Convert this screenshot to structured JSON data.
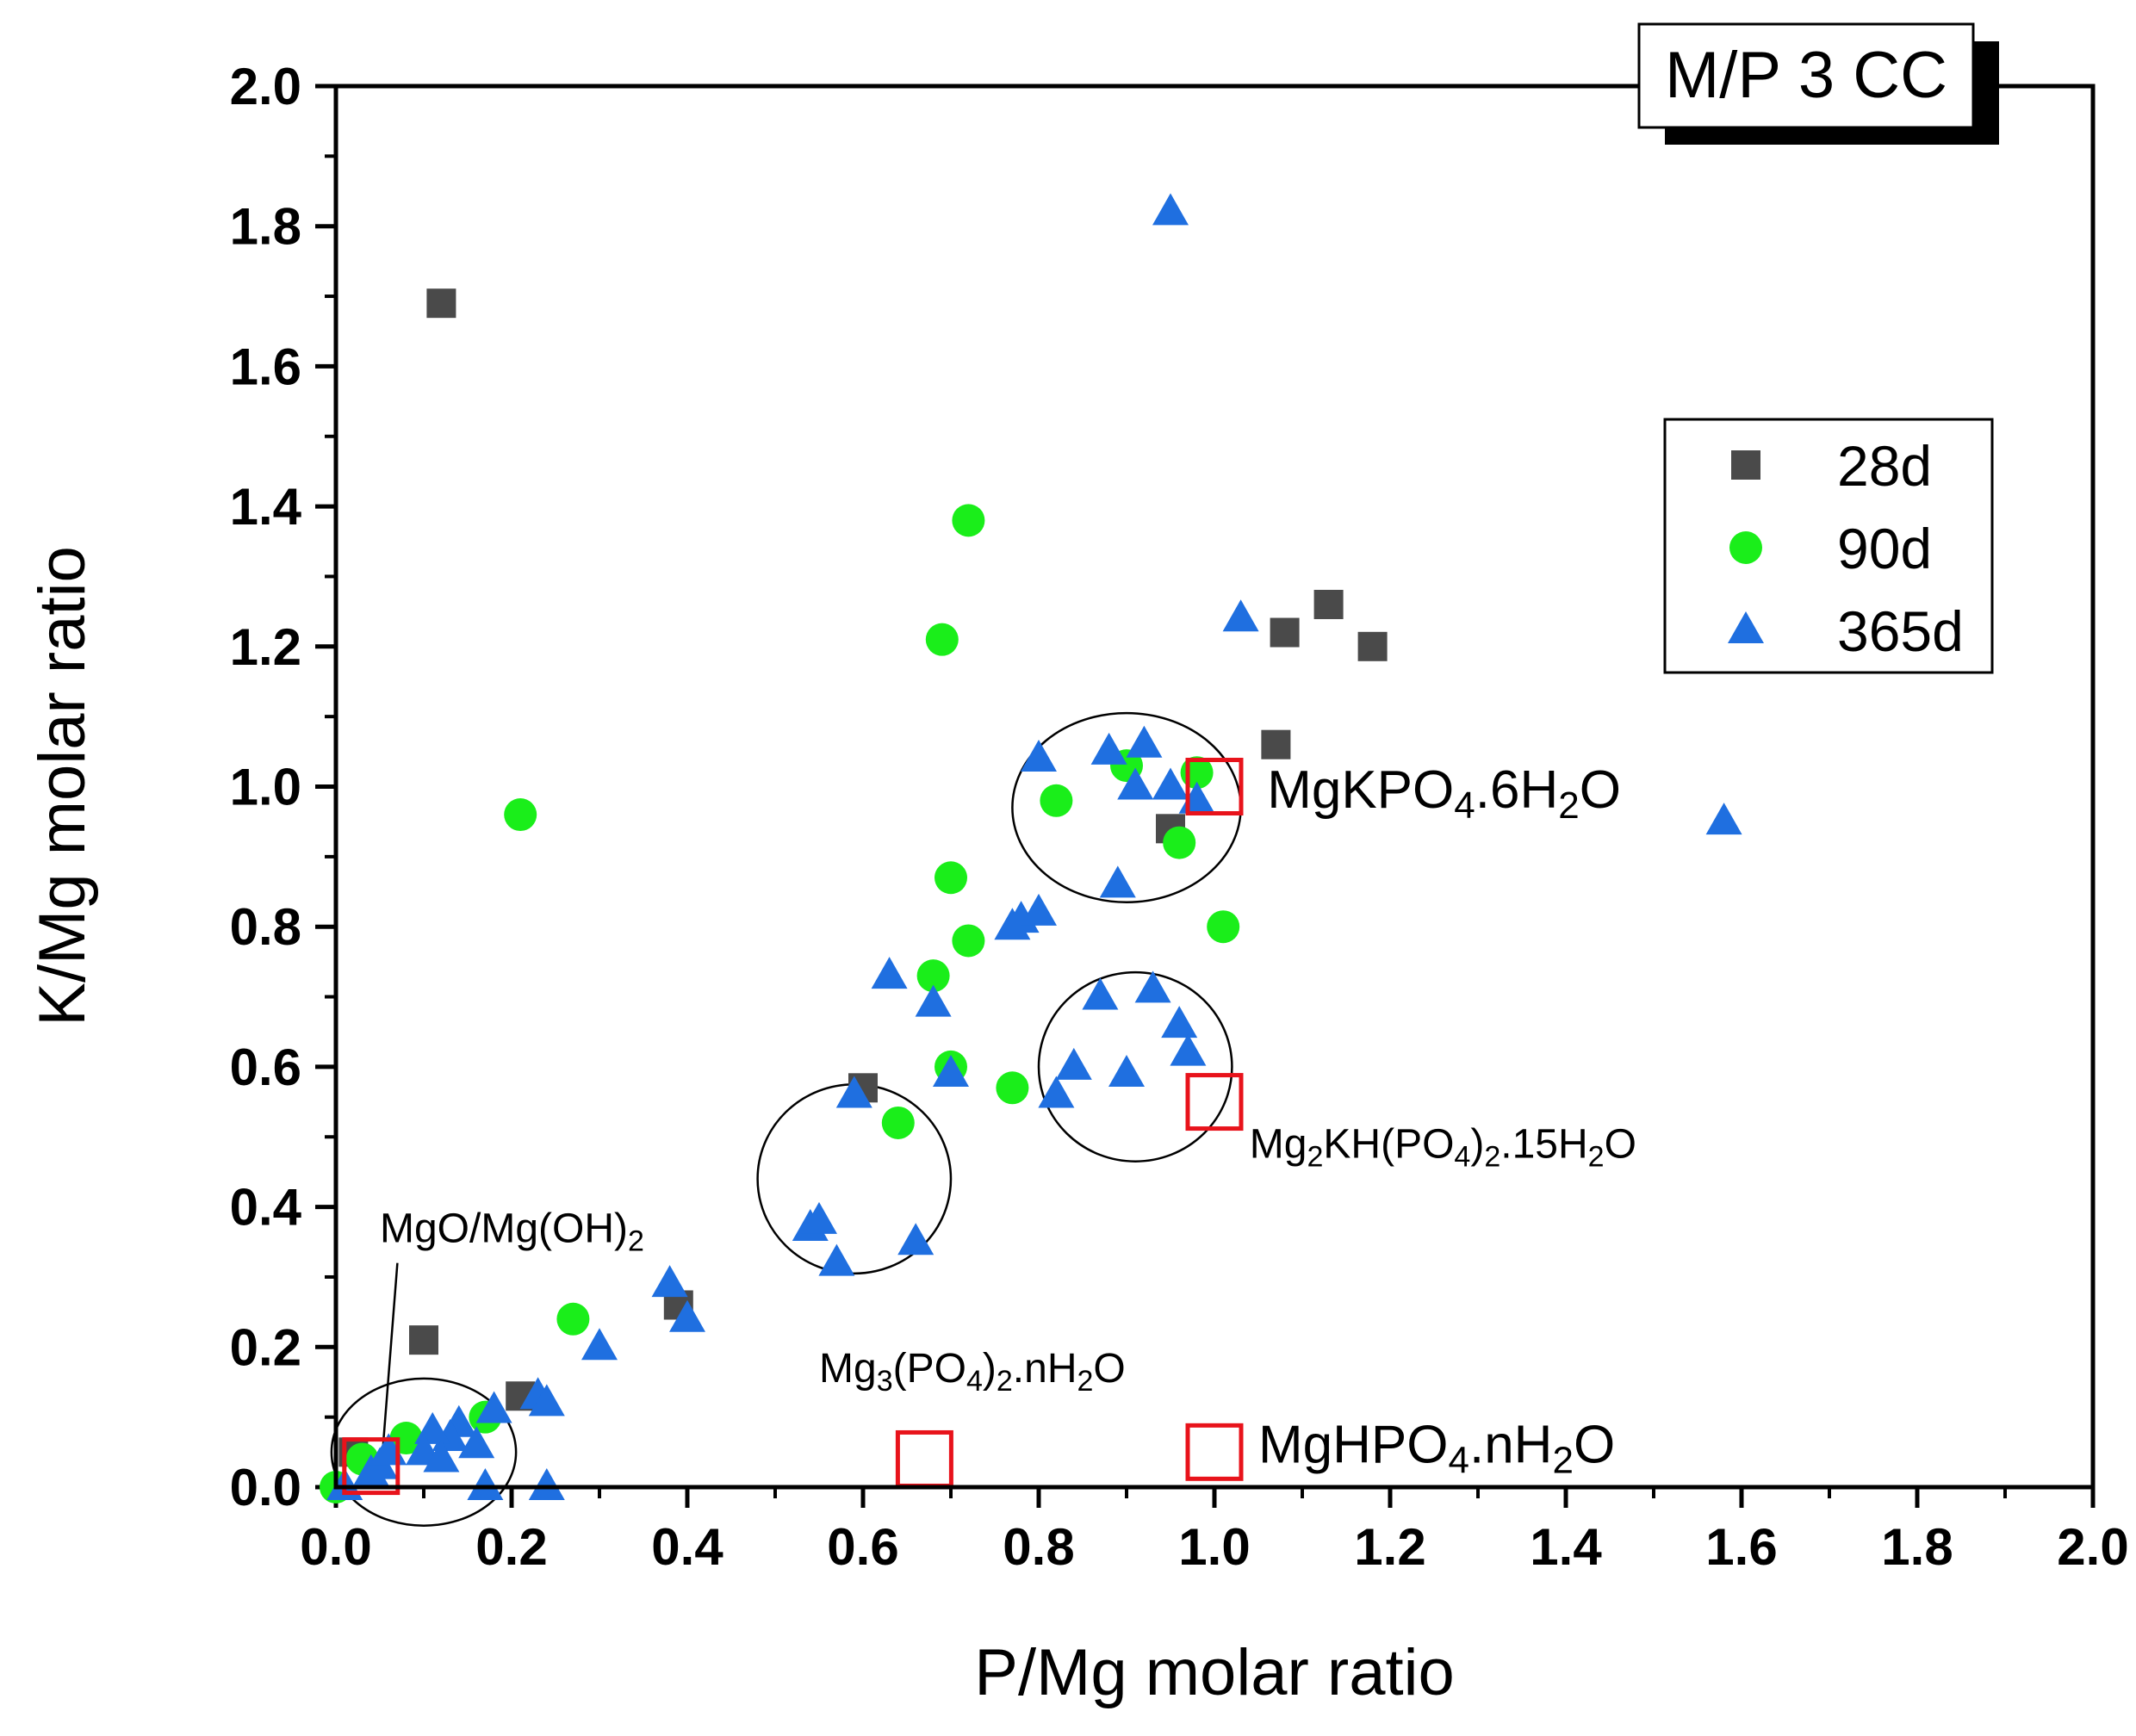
{
  "chart_data": {
    "type": "scatter",
    "title": "M/P 3 CC",
    "xlabel": "P/Mg molar ratio",
    "ylabel": "K/Mg molar ratio",
    "xlim": [
      0,
      2
    ],
    "ylim": [
      0,
      2
    ],
    "xticks": [
      "0.0",
      "0.2",
      "0.4",
      "0.6",
      "0.8",
      "1.0",
      "1.2",
      "1.4",
      "1.6",
      "1.8",
      "2.0"
    ],
    "yticks": [
      "0.0",
      "0.2",
      "0.4",
      "0.6",
      "0.8",
      "1.0",
      "1.2",
      "1.4",
      "1.6",
      "1.8",
      "2.0"
    ],
    "legend_position": "upper-right",
    "series": [
      {
        "name": "28d",
        "marker": "square",
        "color": "#4a4a4a",
        "points": [
          [
            0.12,
            1.69
          ],
          [
            0.1,
            0.21
          ],
          [
            0.21,
            0.13
          ],
          [
            0.02,
            0.05
          ],
          [
            0.39,
            0.26
          ],
          [
            0.6,
            0.57
          ],
          [
            0.95,
            0.94
          ],
          [
            1.08,
            1.22
          ],
          [
            1.13,
            1.26
          ],
          [
            1.18,
            1.2
          ],
          [
            1.07,
            1.06
          ]
        ]
      },
      {
        "name": "90d",
        "marker": "circle",
        "color": "#1aee1a",
        "points": [
          [
            0.21,
            0.96
          ],
          [
            0.72,
            1.38
          ],
          [
            0.69,
            1.21
          ],
          [
            0.7,
            0.87
          ],
          [
            0.72,
            0.78
          ],
          [
            0.68,
            0.73
          ],
          [
            0.7,
            0.6
          ],
          [
            0.77,
            0.57
          ],
          [
            0.64,
            0.52
          ],
          [
            0.82,
            0.98
          ],
          [
            0.9,
            1.03
          ],
          [
            0.96,
            0.92
          ],
          [
            0.98,
            1.02
          ],
          [
            1.01,
            0.8
          ],
          [
            0.27,
            0.24
          ],
          [
            0.17,
            0.1
          ],
          [
            0.08,
            0.07
          ],
          [
            0.03,
            0.04
          ],
          [
            0.0,
            0.0
          ]
        ]
      },
      {
        "name": "365d",
        "marker": "triangle",
        "color": "#1f6fe0",
        "points": [
          [
            0.95,
            1.82
          ],
          [
            1.03,
            1.24
          ],
          [
            1.58,
            0.95
          ],
          [
            0.8,
            1.04
          ],
          [
            0.88,
            1.05
          ],
          [
            0.92,
            1.06
          ],
          [
            0.91,
            1.0
          ],
          [
            0.95,
            1.0
          ],
          [
            0.98,
            0.98
          ],
          [
            0.89,
            0.86
          ],
          [
            0.77,
            0.8
          ],
          [
            0.78,
            0.81
          ],
          [
            0.8,
            0.82
          ],
          [
            0.63,
            0.73
          ],
          [
            0.68,
            0.69
          ],
          [
            0.7,
            0.59
          ],
          [
            0.87,
            0.7
          ],
          [
            0.93,
            0.71
          ],
          [
            0.96,
            0.66
          ],
          [
            0.97,
            0.62
          ],
          [
            0.84,
            0.6
          ],
          [
            0.82,
            0.56
          ],
          [
            0.9,
            0.59
          ],
          [
            0.59,
            0.56
          ],
          [
            0.54,
            0.37
          ],
          [
            0.55,
            0.38
          ],
          [
            0.57,
            0.32
          ],
          [
            0.66,
            0.35
          ],
          [
            0.38,
            0.29
          ],
          [
            0.4,
            0.24
          ],
          [
            0.3,
            0.2
          ],
          [
            0.23,
            0.13
          ],
          [
            0.24,
            0.12
          ],
          [
            0.18,
            0.11
          ],
          [
            0.14,
            0.09
          ],
          [
            0.13,
            0.07
          ],
          [
            0.11,
            0.08
          ],
          [
            0.1,
            0.05
          ],
          [
            0.12,
            0.04
          ],
          [
            0.16,
            0.06
          ],
          [
            0.17,
            0.0
          ],
          [
            0.24,
            0.0
          ],
          [
            0.04,
            0.02
          ],
          [
            0.05,
            0.03
          ],
          [
            0.01,
            0.0
          ],
          [
            0.06,
            0.05
          ]
        ]
      },
      {
        "name": "reference phases",
        "marker": "open-square",
        "color": "#e8131b",
        "in_legend": false,
        "points": [
          [
            0.04,
            0.03
          ],
          [
            1.0,
            1.0
          ],
          [
            1.0,
            0.55
          ],
          [
            0.67,
            0.04
          ],
          [
            1.0,
            0.05
          ]
        ]
      }
    ],
    "ellipses": [
      {
        "cx": 0.1,
        "cy": 0.05,
        "rx": 0.105,
        "ry": 0.105
      },
      {
        "cx": 0.59,
        "cy": 0.44,
        "rx": 0.11,
        "ry": 0.135
      },
      {
        "cx": 0.91,
        "cy": 0.6,
        "rx": 0.11,
        "ry": 0.135
      },
      {
        "cx": 0.9,
        "cy": 0.97,
        "rx": 0.13,
        "ry": 0.135
      }
    ],
    "annotations": [
      {
        "id": "ann-mgkpo4",
        "x": 1.06,
        "y": 0.97,
        "size": "big",
        "parts": [
          {
            "t": "MgKPO"
          },
          {
            "t": "4",
            "sub": true
          },
          {
            "t": ".6H"
          },
          {
            "t": "2",
            "sub": true
          },
          {
            "t": "O"
          }
        ]
      },
      {
        "id": "ann-mg2kh",
        "x": 1.04,
        "y": 0.47,
        "size": "small",
        "parts": [
          {
            "t": "Mg"
          },
          {
            "t": "2",
            "sub": true
          },
          {
            "t": "KH(PO"
          },
          {
            "t": "4",
            "sub": true
          },
          {
            "t": ")"
          },
          {
            "t": "2",
            "sub": true
          },
          {
            "t": ".15H"
          },
          {
            "t": "2",
            "sub": true
          },
          {
            "t": "O"
          }
        ]
      },
      {
        "id": "ann-mgo",
        "x": 0.05,
        "y": 0.35,
        "size": "small",
        "parts": [
          {
            "t": "MgO/Mg(OH)"
          },
          {
            "t": "2",
            "sub": true
          }
        ]
      },
      {
        "id": "ann-mg3po4",
        "x": 0.55,
        "y": 0.15,
        "size": "small",
        "parts": [
          {
            "t": "Mg"
          },
          {
            "t": "3",
            "sub": true
          },
          {
            "t": "(PO"
          },
          {
            "t": "4",
            "sub": true
          },
          {
            "t": ")"
          },
          {
            "t": "2",
            "sub": true
          },
          {
            "t": ".nH"
          },
          {
            "t": "2",
            "sub": true
          },
          {
            "t": "O"
          }
        ]
      },
      {
        "id": "ann-mghpo4",
        "x": 1.05,
        "y": 0.035,
        "size": "big",
        "parts": [
          {
            "t": "MgHPO"
          },
          {
            "t": "4",
            "sub": true
          },
          {
            "t": ".nH"
          },
          {
            "t": "2",
            "sub": true
          },
          {
            "t": "O"
          }
        ]
      }
    ],
    "leader_line": {
      "from": [
        0.07,
        0.32
      ],
      "to": [
        0.05,
        0.0
      ]
    }
  }
}
